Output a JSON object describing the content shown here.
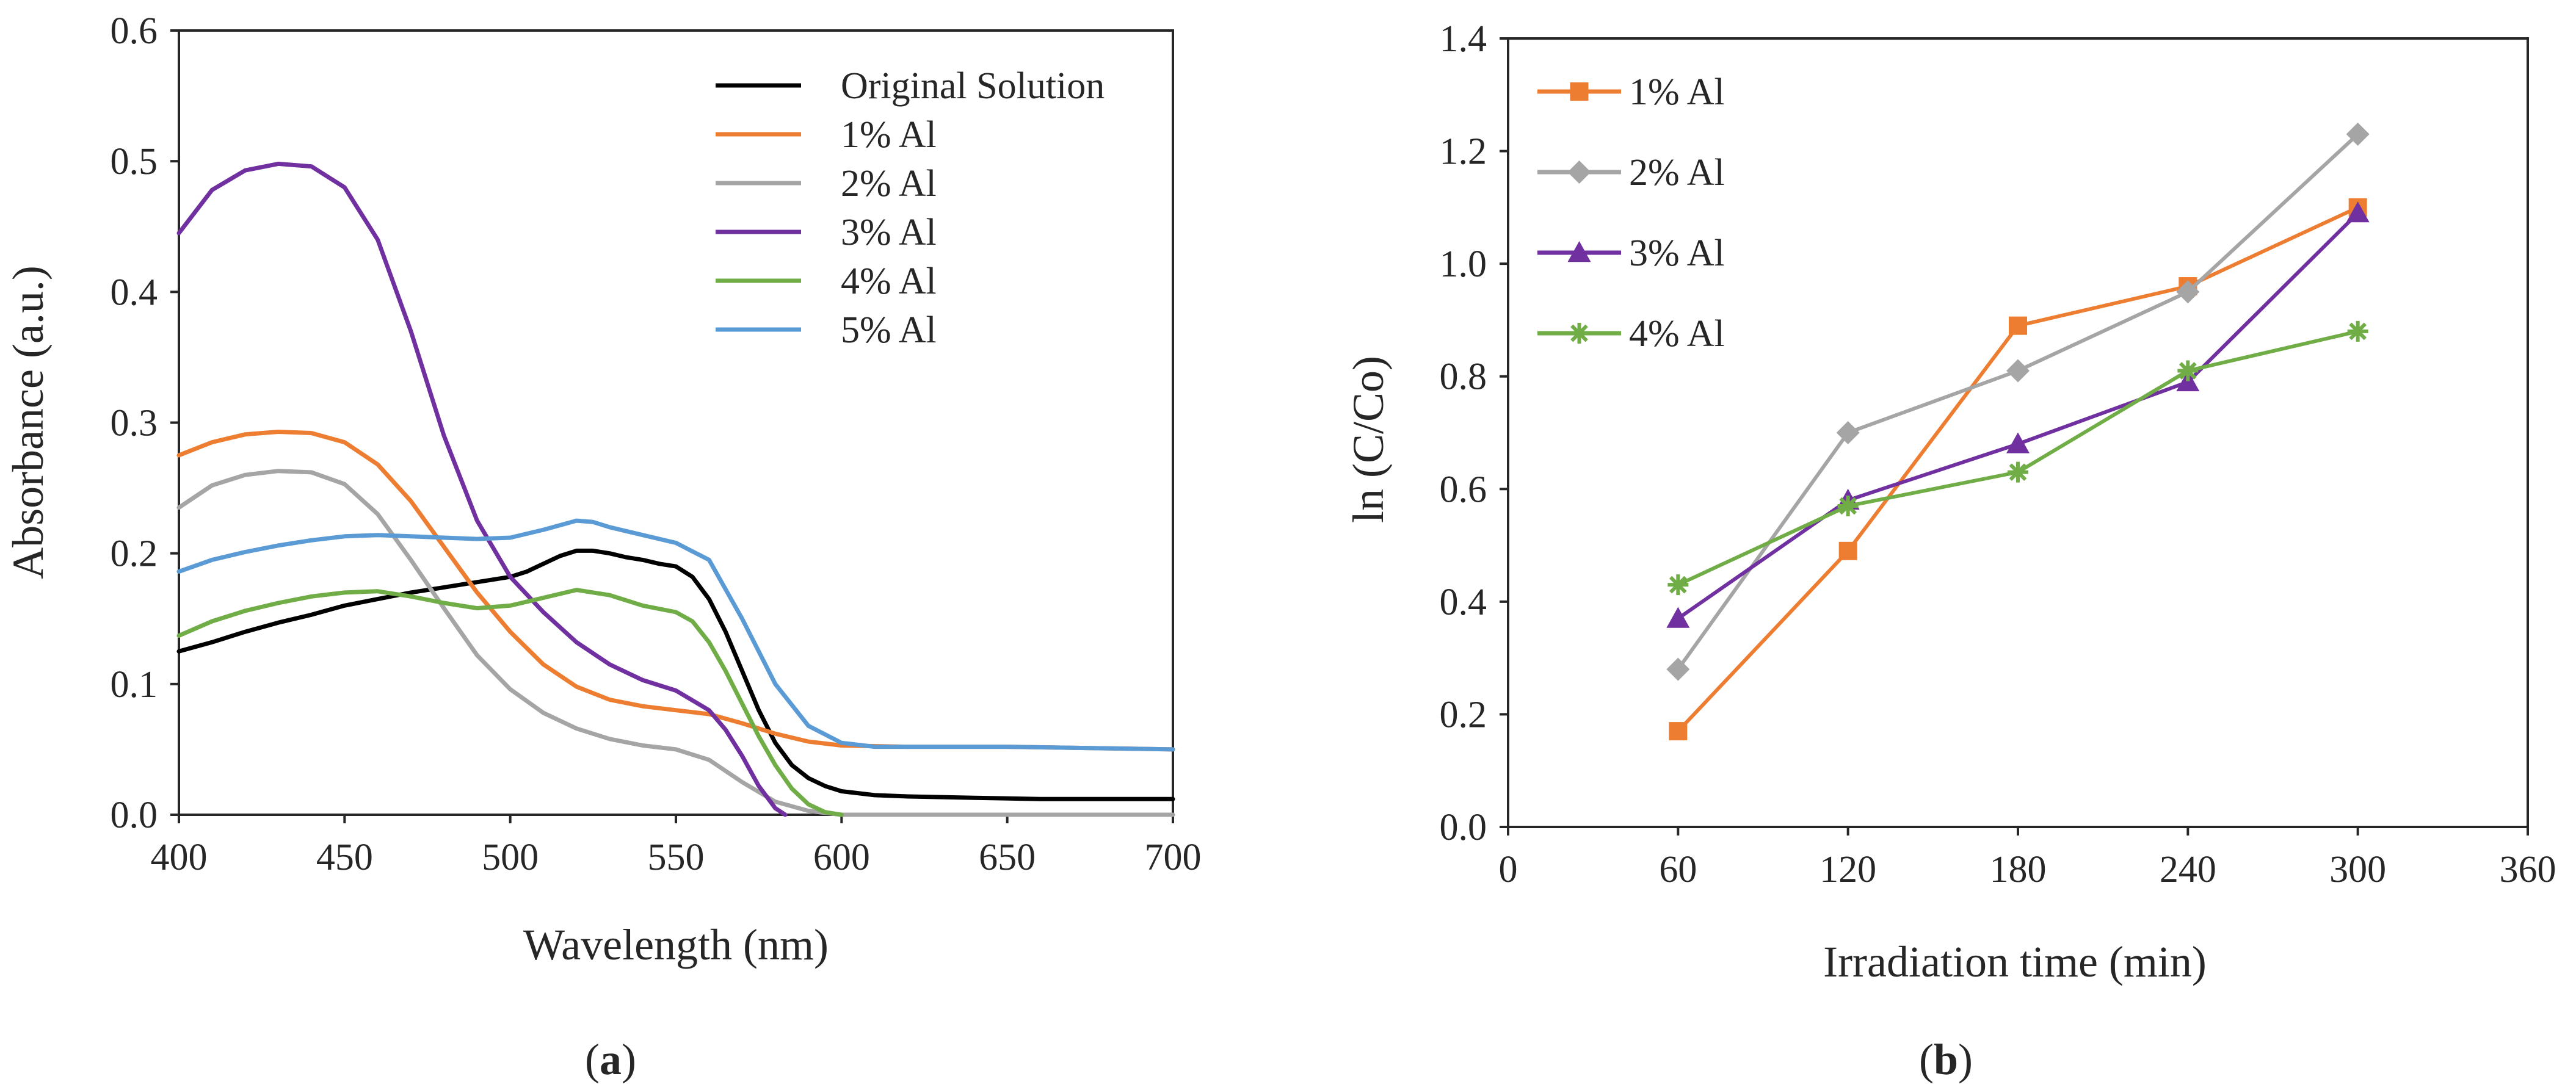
{
  "chart_data": [
    {
      "id": "a",
      "type": "line",
      "panel_label": "a",
      "xlabel": "Wavelength (nm)",
      "ylabel": "Absorbance (a.u.)",
      "xlim": [
        400,
        700
      ],
      "ylim": [
        0.0,
        0.6
      ],
      "xticks": [
        "400",
        "450",
        "500",
        "550",
        "600",
        "650",
        "700"
      ],
      "yticks": [
        "0.0",
        "0.1",
        "0.2",
        "0.3",
        "0.4",
        "0.5",
        "0.6"
      ],
      "legend": "top-right",
      "series": [
        {
          "name": "Original Solution",
          "color": "#000000",
          "x": [
            400,
            410,
            420,
            430,
            440,
            450,
            460,
            470,
            480,
            490,
            500,
            505,
            510,
            515,
            520,
            525,
            530,
            535,
            540,
            545,
            550,
            555,
            560,
            565,
            570,
            575,
            580,
            585,
            590,
            595,
            600,
            610,
            620,
            640,
            660,
            680,
            700
          ],
          "y": [
            0.125,
            0.132,
            0.14,
            0.147,
            0.153,
            0.16,
            0.165,
            0.17,
            0.174,
            0.178,
            0.182,
            0.186,
            0.192,
            0.198,
            0.202,
            0.202,
            0.2,
            0.197,
            0.195,
            0.192,
            0.19,
            0.182,
            0.165,
            0.14,
            0.11,
            0.08,
            0.055,
            0.038,
            0.028,
            0.022,
            0.018,
            0.015,
            0.014,
            0.013,
            0.012,
            0.012,
            0.012
          ]
        },
        {
          "name": "1% Al",
          "color": "#ED7D31",
          "x": [
            400,
            410,
            420,
            430,
            440,
            450,
            460,
            470,
            480,
            490,
            500,
            510,
            520,
            530,
            540,
            550,
            560,
            570,
            580,
            590,
            600,
            620,
            650,
            700
          ],
          "y": [
            0.275,
            0.285,
            0.291,
            0.293,
            0.292,
            0.285,
            0.268,
            0.24,
            0.205,
            0.17,
            0.14,
            0.115,
            0.098,
            0.088,
            0.083,
            0.08,
            0.077,
            0.07,
            0.062,
            0.056,
            0.053,
            0.052,
            0.052,
            0.05
          ]
        },
        {
          "name": "2% Al",
          "color": "#A5A5A5",
          "x": [
            400,
            410,
            420,
            430,
            440,
            450,
            460,
            470,
            480,
            490,
            500,
            510,
            520,
            530,
            540,
            550,
            560,
            570,
            580,
            590,
            600,
            650,
            700
          ],
          "y": [
            0.235,
            0.252,
            0.26,
            0.263,
            0.262,
            0.253,
            0.23,
            0.195,
            0.158,
            0.122,
            0.096,
            0.078,
            0.066,
            0.058,
            0.053,
            0.05,
            0.042,
            0.025,
            0.01,
            0.003,
            0.0,
            0.0,
            0.0
          ]
        },
        {
          "name": "3% Al",
          "color": "#7030A0",
          "x": [
            400,
            410,
            420,
            430,
            440,
            450,
            460,
            470,
            480,
            490,
            500,
            510,
            520,
            530,
            540,
            550,
            560,
            565,
            570,
            575,
            580,
            583
          ],
          "y": [
            0.445,
            0.478,
            0.493,
            0.498,
            0.496,
            0.48,
            0.44,
            0.37,
            0.29,
            0.225,
            0.182,
            0.155,
            0.132,
            0.115,
            0.103,
            0.095,
            0.08,
            0.065,
            0.045,
            0.022,
            0.005,
            0.0
          ]
        },
        {
          "name": "4% Al",
          "color": "#70AD47",
          "x": [
            400,
            410,
            420,
            430,
            440,
            450,
            460,
            470,
            480,
            490,
            500,
            510,
            520,
            530,
            540,
            550,
            555,
            560,
            565,
            570,
            575,
            580,
            585,
            590,
            595,
            600
          ],
          "y": [
            0.137,
            0.148,
            0.156,
            0.162,
            0.167,
            0.17,
            0.171,
            0.167,
            0.162,
            0.158,
            0.16,
            0.166,
            0.172,
            0.168,
            0.16,
            0.155,
            0.148,
            0.132,
            0.11,
            0.085,
            0.06,
            0.038,
            0.02,
            0.008,
            0.002,
            0.0
          ]
        },
        {
          "name": "5% Al",
          "color": "#5B9BD5",
          "x": [
            400,
            410,
            420,
            430,
            440,
            450,
            460,
            470,
            480,
            490,
            500,
            510,
            520,
            525,
            530,
            540,
            550,
            560,
            570,
            580,
            590,
            600,
            610,
            620,
            650,
            700
          ],
          "y": [
            0.186,
            0.195,
            0.201,
            0.206,
            0.21,
            0.213,
            0.214,
            0.213,
            0.212,
            0.211,
            0.212,
            0.218,
            0.225,
            0.224,
            0.22,
            0.214,
            0.208,
            0.195,
            0.15,
            0.1,
            0.068,
            0.055,
            0.052,
            0.052,
            0.052,
            0.05
          ]
        }
      ]
    },
    {
      "id": "b",
      "type": "line",
      "panel_label": "b",
      "xlabel": "Irradiation time (min)",
      "ylabel": "ln (C/Co)",
      "xlim": [
        0,
        360
      ],
      "ylim": [
        0.0,
        1.4
      ],
      "xticks": [
        "0",
        "60",
        "120",
        "180",
        "240",
        "300",
        "360"
      ],
      "yticks": [
        "0.0",
        "0.2",
        "0.4",
        "0.6",
        "0.8",
        "1.0",
        "1.2",
        "1.4"
      ],
      "legend": "top-left",
      "series": [
        {
          "name": "1% Al",
          "color": "#ED7D31",
          "marker": "square",
          "x": [
            60,
            120,
            180,
            240,
            300
          ],
          "y": [
            0.17,
            0.49,
            0.89,
            0.96,
            1.1
          ]
        },
        {
          "name": "2% Al",
          "color": "#A5A5A5",
          "marker": "diamond",
          "x": [
            60,
            120,
            180,
            240,
            300
          ],
          "y": [
            0.28,
            0.7,
            0.81,
            0.95,
            1.23
          ]
        },
        {
          "name": "3% Al",
          "color": "#7030A0",
          "marker": "triangle",
          "x": [
            60,
            120,
            180,
            240,
            300
          ],
          "y": [
            0.37,
            0.58,
            0.68,
            0.79,
            1.09
          ]
        },
        {
          "name": "4% Al",
          "color": "#70AD47",
          "marker": "asterisk",
          "x": [
            60,
            120,
            180,
            240,
            300
          ],
          "y": [
            0.43,
            0.57,
            0.63,
            0.81,
            0.88
          ]
        }
      ]
    }
  ]
}
